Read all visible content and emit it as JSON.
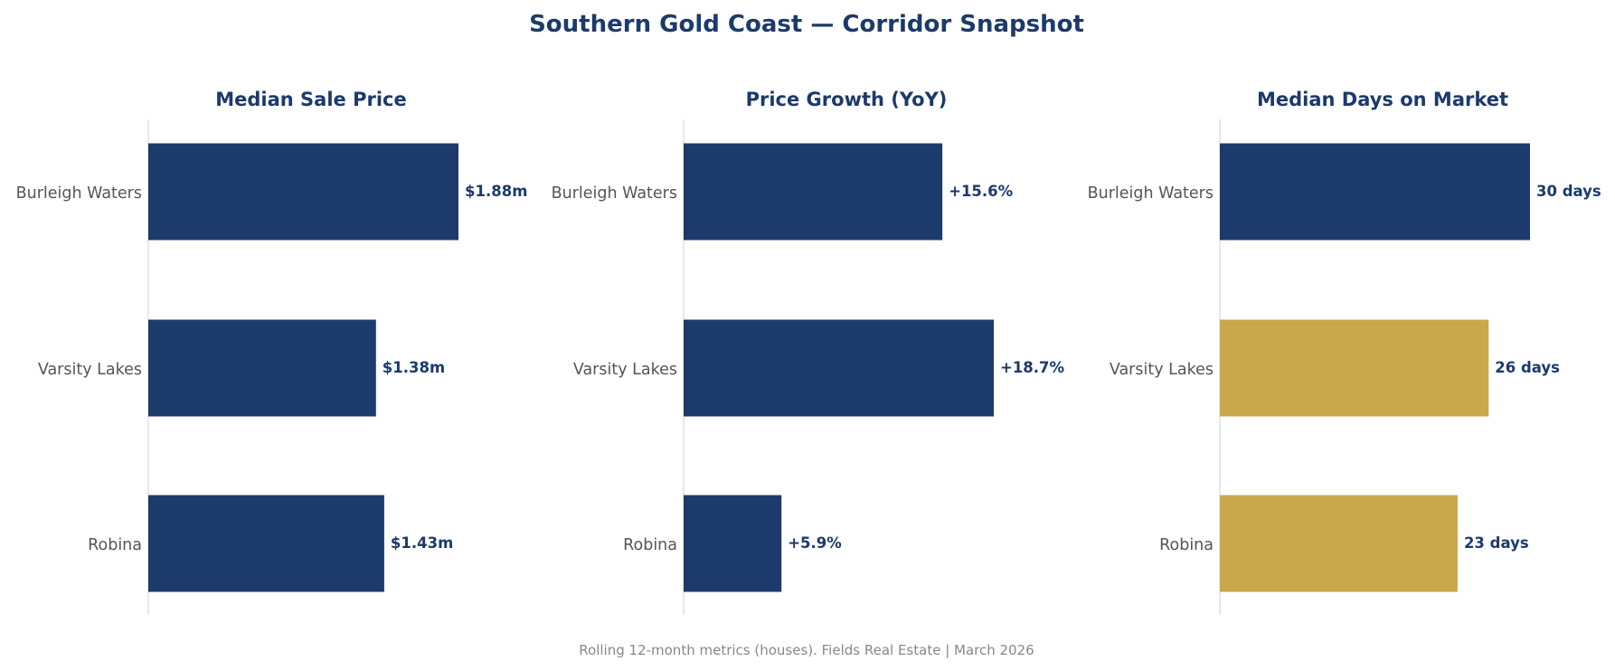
{
  "title": "Southern Gold Coast — Corridor Snapshot",
  "footer": "Rolling 12-month metrics (houses). Fields Real Estate | March 2026",
  "colors": {
    "primary": "#1c3a6b",
    "highlight": "#c9a84c",
    "axis": "#d9d9d9",
    "label": "#555555",
    "footer": "#888888"
  },
  "chart_data": [
    {
      "type": "bar",
      "orientation": "horizontal",
      "title": "Median Sale Price",
      "categories": [
        "Burleigh Waters",
        "Varsity Lakes",
        "Robina"
      ],
      "values": [
        1.88,
        1.38,
        1.43
      ],
      "labels": [
        "$1.88m",
        "$1.38m",
        "$1.43m"
      ],
      "unit": "$m",
      "bar_colors": [
        "#1c3a6b",
        "#1c3a6b",
        "#1c3a6b"
      ],
      "grid": false
    },
    {
      "type": "bar",
      "orientation": "horizontal",
      "title": "Price Growth (YoY)",
      "categories": [
        "Burleigh Waters",
        "Varsity Lakes",
        "Robina"
      ],
      "values": [
        15.6,
        18.7,
        5.9
      ],
      "labels": [
        "+15.6%",
        "+18.7%",
        "+5.9%"
      ],
      "unit": "%",
      "bar_colors": [
        "#1c3a6b",
        "#1c3a6b",
        "#1c3a6b"
      ],
      "grid": false
    },
    {
      "type": "bar",
      "orientation": "horizontal",
      "title": "Median Days on Market",
      "categories": [
        "Burleigh Waters",
        "Varsity Lakes",
        "Robina"
      ],
      "values": [
        30,
        26,
        23
      ],
      "labels": [
        "30 days",
        "26 days",
        "23 days"
      ],
      "unit": "days",
      "bar_colors": [
        "#1c3a6b",
        "#c9a84c",
        "#c9a84c"
      ],
      "grid": false
    }
  ]
}
